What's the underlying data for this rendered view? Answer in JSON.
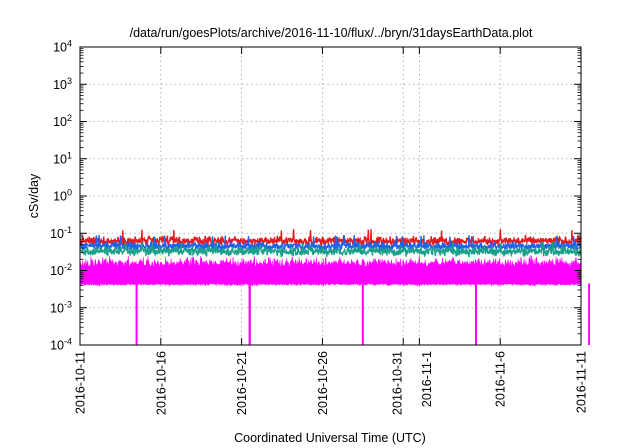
{
  "chart_data": {
    "type": "line",
    "title": "/data/run/goesPlots/archive/2016-11-10/flux/../bryn/31daysEarthData.plot",
    "xlabel": "Coordinated Universal Time (UTC)",
    "ylabel": "cSv/day",
    "y_scale": "log",
    "ylim": [
      0.0001,
      10000
    ],
    "xlim": [
      "2016-10-11",
      "2016-11-11"
    ],
    "grid": true,
    "x_ticks": [
      {
        "date": "2016-10-11",
        "label": "2016-10-11"
      },
      {
        "date": "2016-10-16",
        "label": "2016-10-16"
      },
      {
        "date": "2016-10-21",
        "label": "2016-10-21"
      },
      {
        "date": "2016-10-26",
        "label": "2016-10-26"
      },
      {
        "date": "2016-10-31",
        "label": "2016-10-31"
      },
      {
        "date": "2016-11-01",
        "label": "2016-11-1"
      },
      {
        "date": "2016-11-06",
        "label": "2016-11-6"
      },
      {
        "date": "2016-11-11",
        "label": "2016-11-11"
      }
    ],
    "y_ticks": [
      {
        "value": 0.0001,
        "base": "10",
        "exp": "-4"
      },
      {
        "value": 0.001,
        "base": "10",
        "exp": "-3"
      },
      {
        "value": 0.01,
        "base": "10",
        "exp": "-2"
      },
      {
        "value": 0.1,
        "base": "10",
        "exp": "-1"
      },
      {
        "value": 1,
        "base": "10",
        "exp": "0"
      },
      {
        "value": 10,
        "base": "10",
        "exp": "1"
      },
      {
        "value": 100,
        "base": "10",
        "exp": "2"
      },
      {
        "value": 1000,
        "base": "10",
        "exp": "3"
      },
      {
        "value": 10000,
        "base": "10",
        "exp": "4"
      }
    ],
    "series": [
      {
        "color": "#e41a1c",
        "base": 0.062,
        "spread": 0.17,
        "spike_max": 0.13
      },
      {
        "color": "#1e63e8",
        "base": 0.045,
        "spread": 0.16,
        "spike_max": 0.09
      },
      {
        "color": "#1aa088",
        "base": 0.033,
        "spread": 0.18,
        "spike_max": 0.06
      },
      {
        "color": "#ff00ff",
        "base": 0.0125,
        "floor": 0.0045,
        "peak": 0.04,
        "dropouts": [
          "2016-10-14",
          "2016-10-21",
          "2016-10-21",
          "2016-10-28",
          "2016-11-04",
          "2016-11-11"
        ]
      }
    ]
  }
}
